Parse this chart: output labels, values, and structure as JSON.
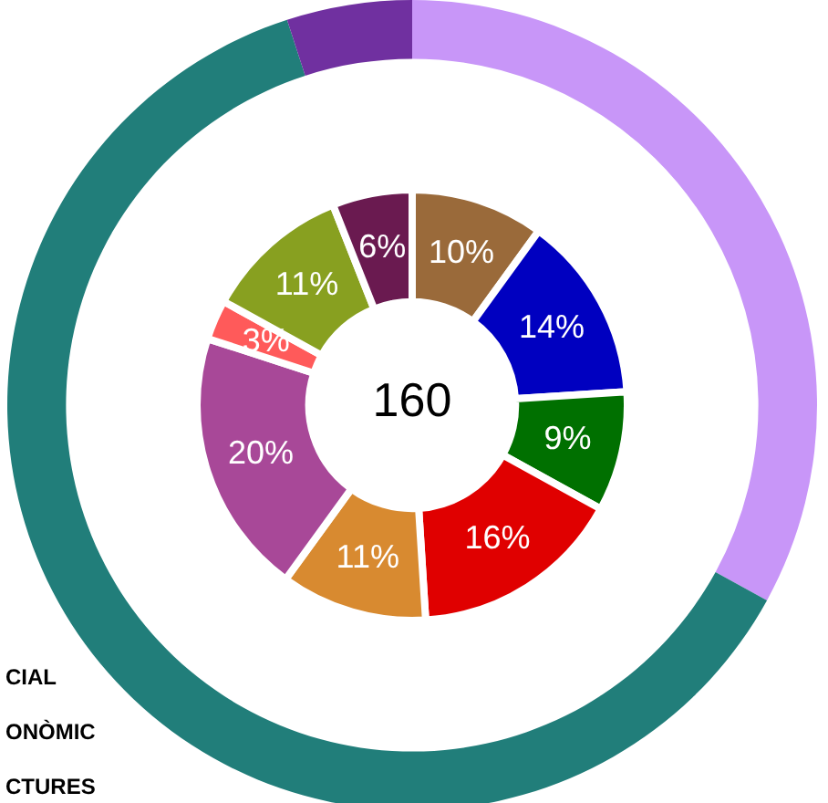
{
  "chart_data": {
    "type": "donut",
    "series": [
      {
        "values": [
          33,
          62,
          5
        ],
        "colors": [
          "#c896f8",
          "#217e7a",
          "#7030a0"
        ]
      },
      {
        "values": [
          10,
          14,
          9,
          16,
          11,
          20,
          3,
          11,
          6
        ],
        "colors": [
          "#9a6a3a",
          "#0000c0",
          "#007000",
          "#e00000",
          "#d88a30",
          "#a84898",
          "#ff5a5a",
          "#88a020",
          "#6a1a50"
        ],
        "value_labels": [
          "10%",
          "14%",
          "9%",
          "16%",
          "11%",
          "20%",
          "3%",
          "11%",
          "6%"
        ]
      }
    ],
    "annotations": [
      "160",
      "CIAL",
      "ONÒMIC",
      "CTURES"
    ],
    "legend": false
  }
}
